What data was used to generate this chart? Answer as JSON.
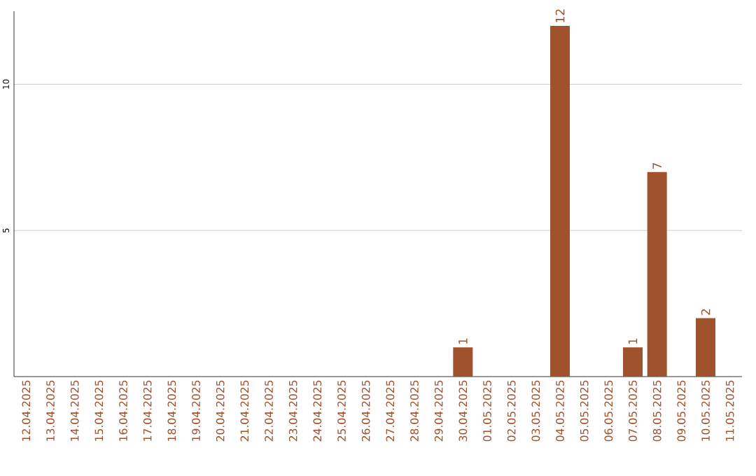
{
  "chart_data": {
    "type": "bar",
    "categories": [
      "12.04.2025",
      "13.04.2025",
      "14.04.2025",
      "15.04.2025",
      "16.04.2025",
      "17.04.2025",
      "18.04.2025",
      "19.04.2025",
      "20.04.2025",
      "21.04.2025",
      "22.04.2025",
      "23.04.2025",
      "24.04.2025",
      "25.04.2025",
      "26.04.2025",
      "27.04.2025",
      "28.04.2025",
      "29.04.2025",
      "30.04.2025",
      "01.05.2025",
      "02.05.2025",
      "03.05.2025",
      "04.05.2025",
      "05.05.2025",
      "06.05.2025",
      "07.05.2025",
      "08.05.2025",
      "09.05.2025",
      "10.05.2025",
      "11.05.2025"
    ],
    "values": [
      0,
      0,
      0,
      0,
      0,
      0,
      0,
      0,
      0,
      0,
      0,
      0,
      0,
      0,
      0,
      0,
      0,
      0,
      1,
      0,
      0,
      0,
      12,
      0,
      0,
      1,
      7,
      0,
      2,
      0
    ],
    "value_labels": [
      null,
      null,
      null,
      null,
      null,
      null,
      null,
      null,
      null,
      null,
      null,
      null,
      null,
      null,
      null,
      null,
      null,
      null,
      "1",
      null,
      null,
      null,
      "12",
      null,
      null,
      "1",
      "7",
      null,
      "2",
      null
    ],
    "color": "#a0522d",
    "ylim": [
      0,
      12.5
    ],
    "yticks": [
      5,
      10
    ],
    "grid": "y"
  }
}
